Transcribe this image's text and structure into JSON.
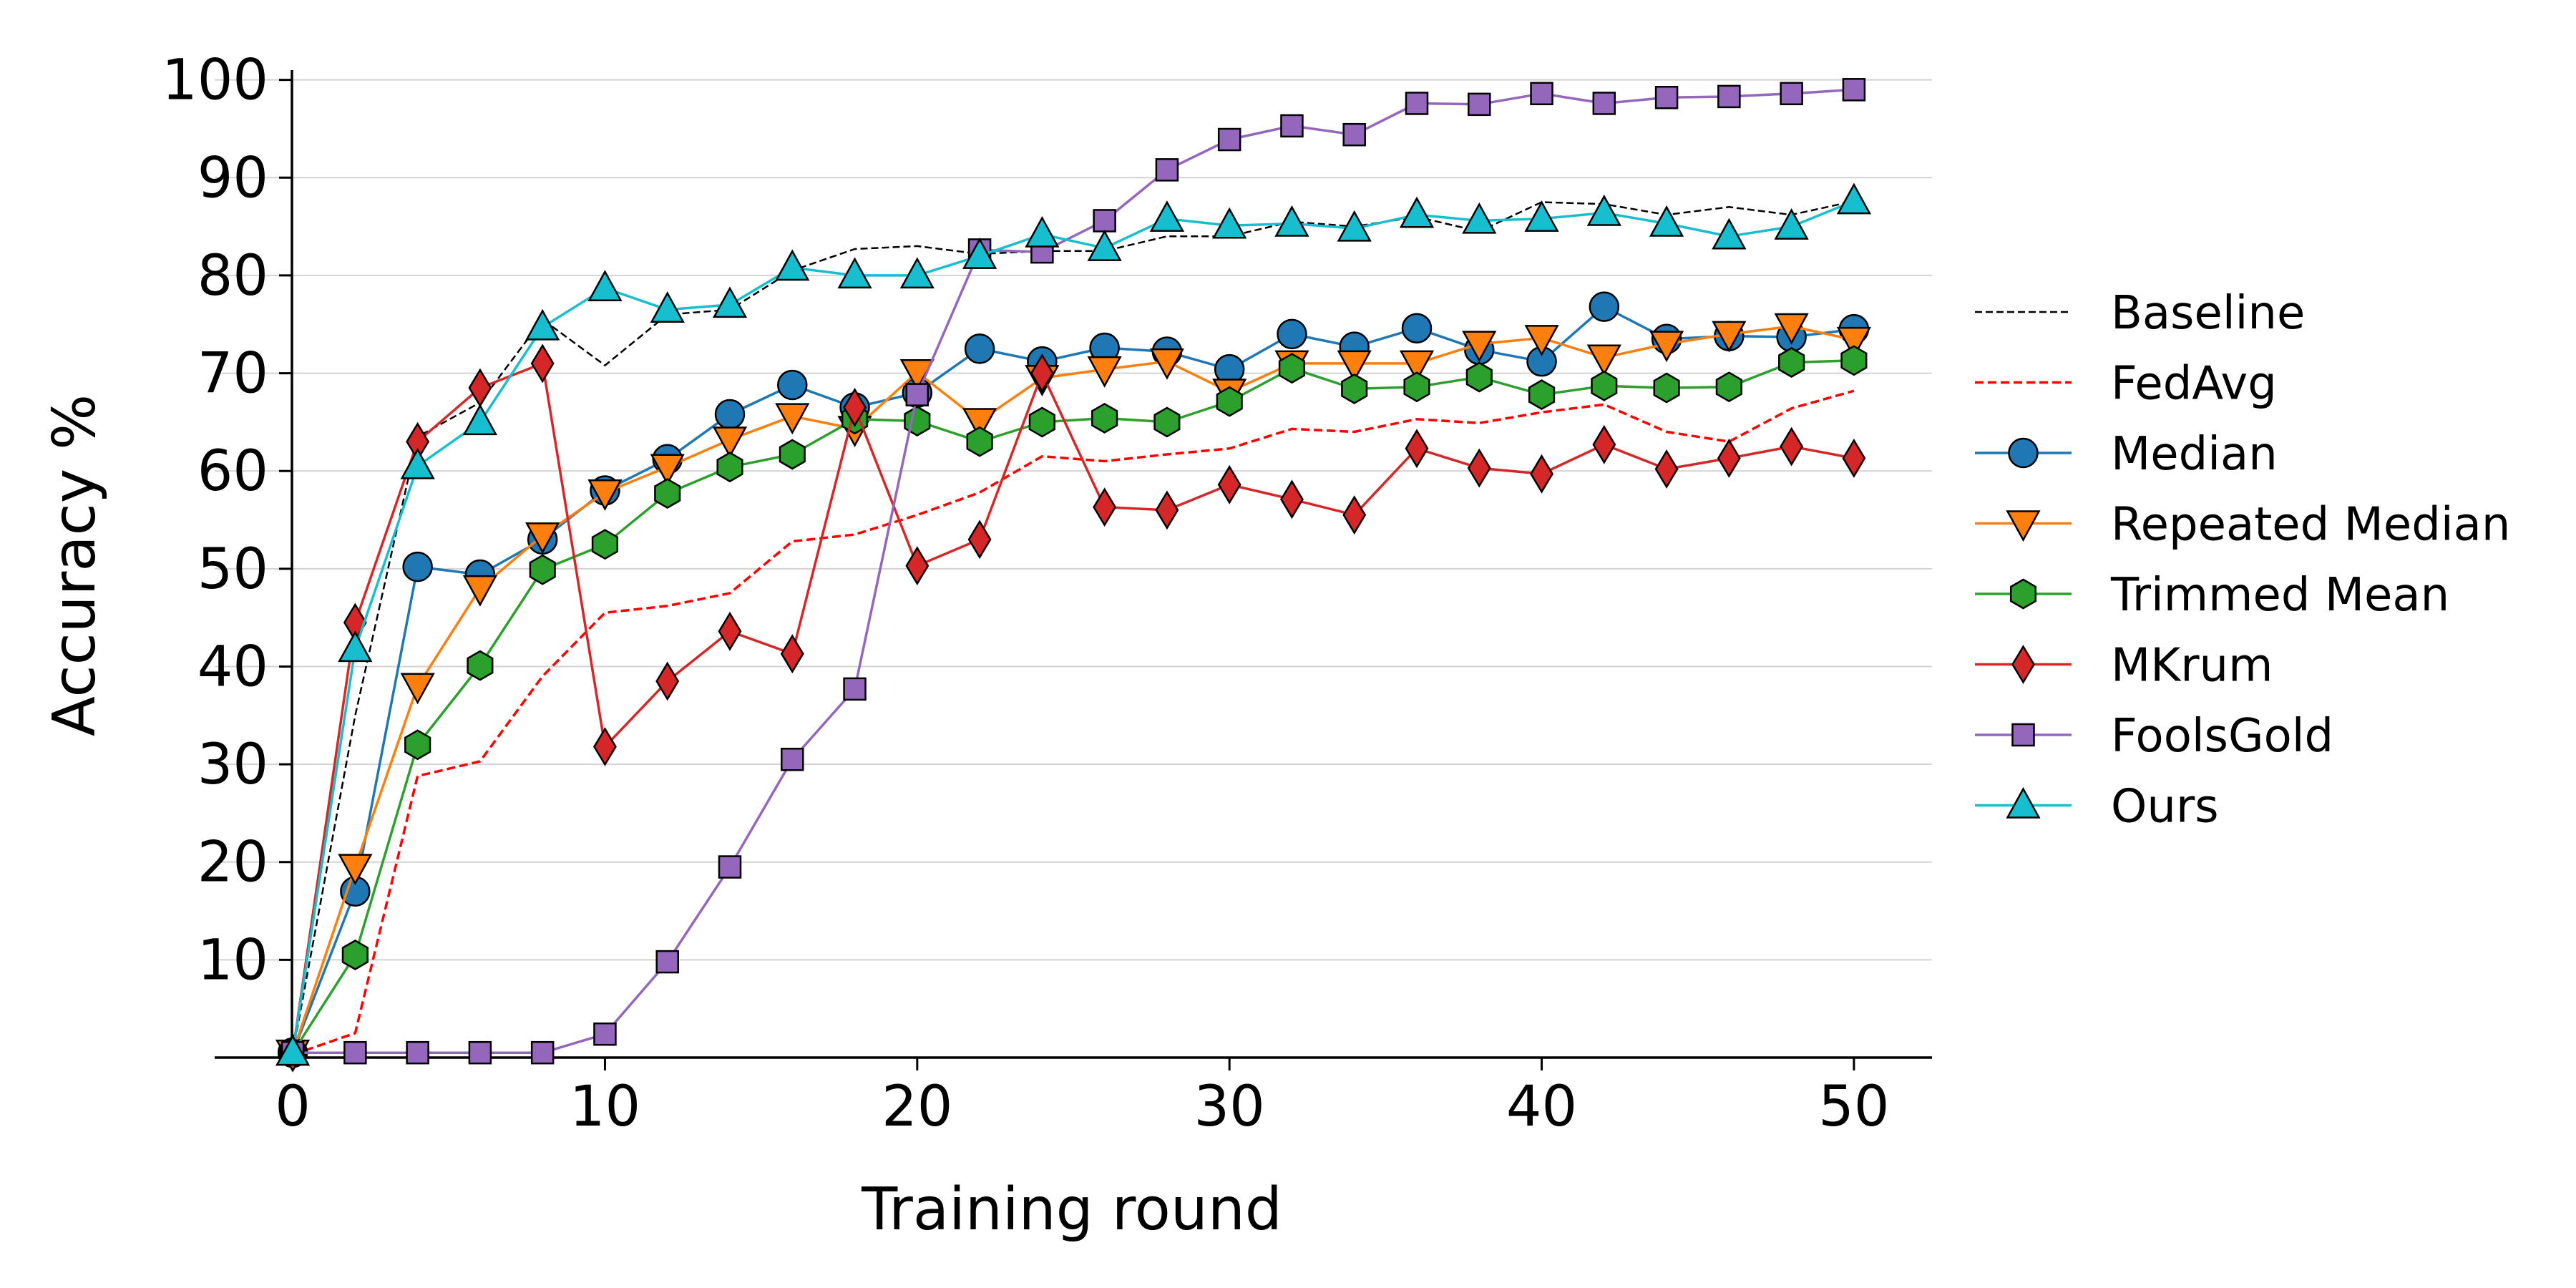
{
  "chart_data": {
    "type": "line",
    "title": "",
    "xlabel": "Training round",
    "ylabel": "Accuracy %",
    "xlim": [
      -2.5,
      52.5
    ],
    "ylim": [
      0,
      101
    ],
    "xticks": [
      0,
      10,
      20,
      30,
      40,
      50
    ],
    "yticks": [
      10,
      20,
      30,
      40,
      50,
      60,
      70,
      80,
      90,
      100
    ],
    "grid": "horizontal",
    "legend_position": "right",
    "x": [
      0,
      2,
      4,
      6,
      8,
      10,
      12,
      14,
      16,
      18,
      20,
      22,
      24,
      26,
      28,
      30,
      32,
      34,
      36,
      38,
      40,
      42,
      44,
      46,
      48,
      50
    ],
    "series": [
      {
        "name": "Baseline",
        "color": "#000000",
        "style": "dashed-thin",
        "marker": "none",
        "values": [
          0.5,
          35,
          63.5,
          67,
          75.5,
          70.8,
          76,
          76.5,
          80.5,
          82.7,
          83,
          82.2,
          82.5,
          82.5,
          84,
          84,
          85.5,
          85,
          86,
          84.5,
          87.5,
          87.3,
          86.2,
          87,
          86.2,
          87.6
        ]
      },
      {
        "name": "FedAvg",
        "color": "#ff0000",
        "style": "dashed",
        "marker": "none",
        "values": [
          0.3,
          2.5,
          28.8,
          30.3,
          39,
          45.5,
          46.2,
          47.5,
          52.8,
          53.5,
          55.5,
          57.8,
          61.5,
          61,
          61.7,
          62.3,
          64.3,
          64,
          65.3,
          64.9,
          66,
          66.8,
          64,
          63,
          66.4,
          68.2
        ]
      },
      {
        "name": "Median",
        "color": "#1f77b4",
        "style": "solid",
        "marker": "circle",
        "values": [
          0.5,
          17,
          50.2,
          49.4,
          53,
          58,
          61.2,
          65.8,
          68.8,
          66.5,
          68,
          72.5,
          71.2,
          72.6,
          72.2,
          70.4,
          74,
          72.7,
          74.6,
          72.4,
          71.2,
          76.8,
          73.5,
          73.8,
          73.7,
          74.5
        ]
      },
      {
        "name": "Repeated Median",
        "color": "#ff7f0e",
        "style": "solid",
        "marker": "triangle-down",
        "values": [
          0.5,
          19.5,
          38,
          48,
          53.4,
          57.8,
          60.4,
          63.2,
          65.6,
          64.3,
          70.1,
          65.1,
          69.5,
          70.4,
          71.2,
          68.1,
          71,
          71,
          71,
          73,
          73.6,
          71.6,
          73,
          74,
          74.8,
          73.4
        ]
      },
      {
        "name": "Trimmed Mean",
        "color": "#2ca02c",
        "style": "solid",
        "marker": "hexagon",
        "values": [
          0.5,
          10.5,
          32,
          40.1,
          49.9,
          52.5,
          57.7,
          60.4,
          61.7,
          65.3,
          65.1,
          63,
          65,
          65.4,
          65,
          67.1,
          70.5,
          68.4,
          68.6,
          69.6,
          67.8,
          68.7,
          68.5,
          68.6,
          71.1,
          71.3
        ]
      },
      {
        "name": "MKrum",
        "color": "#d62728",
        "style": "solid",
        "marker": "diamond",
        "values": [
          0.5,
          44.5,
          63,
          68.5,
          71,
          31.8,
          38.5,
          43.6,
          41.3,
          66.5,
          50.3,
          53,
          70,
          56.3,
          56,
          58.6,
          57.1,
          55.5,
          62.3,
          60.3,
          59.7,
          62.7,
          60.2,
          61.3,
          62.5,
          61.3
        ]
      },
      {
        "name": "FoolsGold",
        "color": "#9467bd",
        "style": "solid",
        "marker": "square",
        "values": [
          0.5,
          0.5,
          0.5,
          0.5,
          0.5,
          2.4,
          9.8,
          19.5,
          30.5,
          37.7,
          67.8,
          82.6,
          82.4,
          85.6,
          90.8,
          93.9,
          95.3,
          94.4,
          97.6,
          97.5,
          98.6,
          97.6,
          98.2,
          98.3,
          98.6,
          99
        ]
      },
      {
        "name": "Ours",
        "color": "#17becf",
        "style": "solid",
        "marker": "triangle-up",
        "values": [
          0.5,
          41.8,
          60.5,
          65,
          74.7,
          78.7,
          76.5,
          77,
          80.8,
          80,
          80,
          82,
          84.2,
          82.8,
          85.8,
          85.1,
          85.3,
          84.8,
          86.2,
          85.6,
          85.8,
          86.4,
          85.3,
          84,
          85,
          87.6
        ]
      }
    ]
  }
}
